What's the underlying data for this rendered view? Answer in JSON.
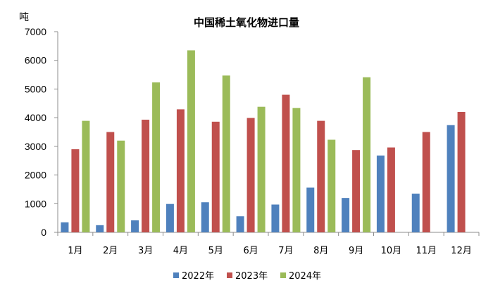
{
  "chart_data": {
    "type": "bar",
    "title": "中国稀土氧化物进口量",
    "ylabel": "吨",
    "xlabel": "",
    "ylim": [
      0,
      7000
    ],
    "yticks": [
      0,
      1000,
      2000,
      3000,
      4000,
      5000,
      6000,
      7000
    ],
    "grid": false,
    "legend_position": "bottom",
    "categories": [
      "1月",
      "2月",
      "3月",
      "4月",
      "5月",
      "6月",
      "7月",
      "8月",
      "9月",
      "10月",
      "11月",
      "12月"
    ],
    "series": [
      {
        "name": "2022年",
        "color": "#4f81bd",
        "values": [
          350,
          250,
          420,
          990,
          1050,
          560,
          970,
          1560,
          1200,
          2680,
          1350,
          3740
        ]
      },
      {
        "name": "2023年",
        "color": "#c0504d",
        "values": [
          2900,
          3500,
          3930,
          4290,
          3860,
          3990,
          4800,
          3890,
          2870,
          2960,
          3500,
          4200
        ]
      },
      {
        "name": "2024年",
        "color": "#9bbb59",
        "values": [
          3890,
          3200,
          5230,
          6350,
          5470,
          4380,
          4340,
          3230,
          5410,
          null,
          null,
          null
        ]
      }
    ]
  }
}
